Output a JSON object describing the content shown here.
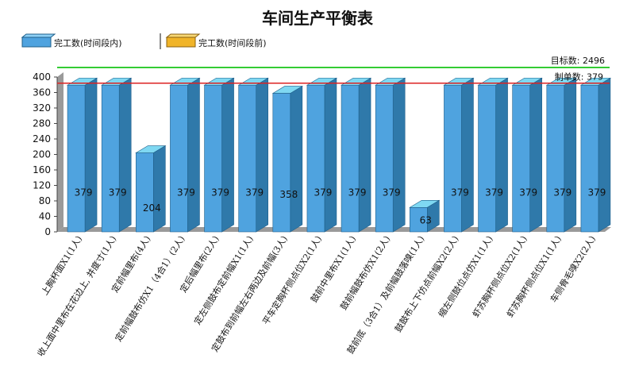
{
  "chart_data": {
    "type": "bar",
    "title": "车间生产平衡表",
    "categories": [
      "上胸杯面X1(1人)",
      "收上面中里布在花边上, 并度寸(1人)",
      "定前幅里布(4人)",
      "定前幅鼓布仿X1（4合1）(2人)",
      "定后幅里布(2人)",
      "定左侧鼓布定前幅X1(1人)",
      "定鼓布到前幅左右两边及前幅(3人)",
      "平车定胸杯侧点位X2(1人)",
      "鼓前中里布X1(1人)",
      "鼓前幅鼓布仿X1(2人)",
      "鼓前底（3合1）及前幅鼓落嗅(1人)",
      "鼓鼓布上下仿点前幅X2(2人)",
      "缩左侧鼓位点仿X1(1人)",
      "虾苏胸杯侧点位X2(1人)",
      "虾苏胸杯侧点位X1(1人)",
      "车侧骨毛嗅X2(2人)"
    ],
    "series": [
      {
        "name": "完工数(时间段内)",
        "color": "#4fa3df",
        "values": [
          379,
          379,
          204,
          379,
          379,
          379,
          358,
          379,
          379,
          379,
          63,
          379,
          379,
          379,
          379,
          379
        ]
      },
      {
        "name": "完工数(时间段前)",
        "color": "#f0b429",
        "values": [
          0,
          0,
          0,
          0,
          0,
          0,
          0,
          0,
          0,
          0,
          0,
          0,
          0,
          0,
          0,
          0
        ]
      }
    ],
    "ylim": [
      0,
      400
    ],
    "yticks": [
      0,
      40,
      80,
      120,
      160,
      200,
      240,
      280,
      320,
      360,
      400
    ],
    "reference_lines": [
      {
        "label": "目标数:",
        "value_text": "2496",
        "color": "#33cc33"
      },
      {
        "label": "制单数:",
        "value_text": "379",
        "value": 379,
        "color": "#dd2222"
      }
    ],
    "legend_position": "top-left",
    "grid": false
  }
}
